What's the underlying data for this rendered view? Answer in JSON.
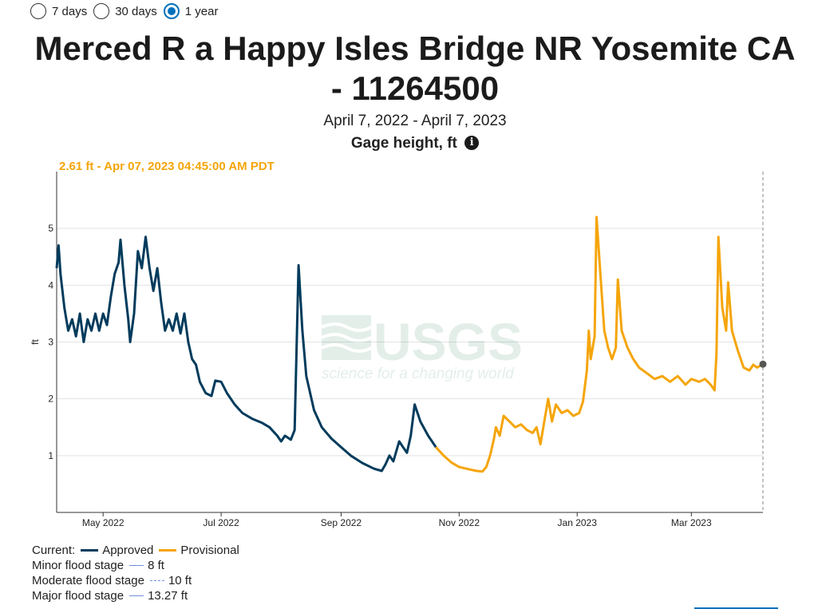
{
  "period_options": [
    {
      "label": "7 days",
      "selected": false
    },
    {
      "label": "30 days",
      "selected": false
    },
    {
      "label": "1 year",
      "selected": true
    }
  ],
  "title_line1": "Merced R a Happy Isles Bridge NR Yosemite CA",
  "title_line2": "- 11264500",
  "date_range": "April 7, 2022 - April 7, 2023",
  "parameter": "Gage height, ft",
  "info_icon": "info-icon",
  "current_value_label": "2.61 ft - Apr 07, 2023 04:45:00 AM PDT",
  "watermark": {
    "logo": "USGS",
    "tagline": "science for a changing world"
  },
  "legend": {
    "current_label": "Current:",
    "approved_label": "Approved",
    "provisional_label": "Provisional",
    "flood_stages": [
      {
        "label": "Minor flood stage",
        "value": "8 ft"
      },
      {
        "label": "Moderate flood stage",
        "value": "10 ft"
      },
      {
        "label": "Major flood stage",
        "value": "13.27 ft"
      }
    ]
  },
  "colors": {
    "approved": "#003b5c",
    "provisional": "#f5a50a",
    "flood": "#6d8fe0",
    "grid": "#e3e3e3",
    "accent": "#0071bc"
  },
  "chart_data": {
    "type": "line",
    "ylabel": "ft",
    "ylim": [
      0,
      6
    ],
    "xlim": [
      "2022-04-07",
      "2023-04-07"
    ],
    "yticks": [
      1,
      2,
      3,
      4,
      5
    ],
    "xticks": [
      {
        "date": "2022-05-01",
        "label": "May 2022"
      },
      {
        "date": "2022-07-01",
        "label": "Jul 2022"
      },
      {
        "date": "2022-09-01",
        "label": "Sep 2022"
      },
      {
        "date": "2022-11-01",
        "label": "Nov 2022"
      },
      {
        "date": "2023-01-01",
        "label": "Jan 2023"
      },
      {
        "date": "2023-03-01",
        "label": "Mar 2023"
      }
    ],
    "grid": true,
    "series": [
      {
        "name": "Approved",
        "points": [
          [
            "2022-04-07",
            4.3
          ],
          [
            "2022-04-08",
            4.7
          ],
          [
            "2022-04-09",
            4.2
          ],
          [
            "2022-04-11",
            3.6
          ],
          [
            "2022-04-13",
            3.2
          ],
          [
            "2022-04-15",
            3.4
          ],
          [
            "2022-04-17",
            3.1
          ],
          [
            "2022-04-19",
            3.5
          ],
          [
            "2022-04-21",
            3.0
          ],
          [
            "2022-04-23",
            3.4
          ],
          [
            "2022-04-25",
            3.2
          ],
          [
            "2022-04-27",
            3.5
          ],
          [
            "2022-04-29",
            3.2
          ],
          [
            "2022-05-01",
            3.5
          ],
          [
            "2022-05-03",
            3.3
          ],
          [
            "2022-05-05",
            3.8
          ],
          [
            "2022-05-07",
            4.2
          ],
          [
            "2022-05-09",
            4.4
          ],
          [
            "2022-05-10",
            4.8
          ],
          [
            "2022-05-12",
            4.0
          ],
          [
            "2022-05-14",
            3.4
          ],
          [
            "2022-05-15",
            3.0
          ],
          [
            "2022-05-17",
            3.5
          ],
          [
            "2022-05-19",
            4.6
          ],
          [
            "2022-05-21",
            4.3
          ],
          [
            "2022-05-23",
            4.85
          ],
          [
            "2022-05-25",
            4.3
          ],
          [
            "2022-05-27",
            3.9
          ],
          [
            "2022-05-29",
            4.3
          ],
          [
            "2022-05-31",
            3.7
          ],
          [
            "2022-06-02",
            3.2
          ],
          [
            "2022-06-04",
            3.4
          ],
          [
            "2022-06-06",
            3.2
          ],
          [
            "2022-06-08",
            3.5
          ],
          [
            "2022-06-10",
            3.15
          ],
          [
            "2022-06-12",
            3.5
          ],
          [
            "2022-06-14",
            3.0
          ],
          [
            "2022-06-16",
            2.7
          ],
          [
            "2022-06-18",
            2.6
          ],
          [
            "2022-06-20",
            2.3
          ],
          [
            "2022-06-23",
            2.1
          ],
          [
            "2022-06-26",
            2.05
          ],
          [
            "2022-06-28",
            2.32
          ],
          [
            "2022-07-01",
            2.3
          ],
          [
            "2022-07-04",
            2.1
          ],
          [
            "2022-07-08",
            1.9
          ],
          [
            "2022-07-12",
            1.75
          ],
          [
            "2022-07-17",
            1.65
          ],
          [
            "2022-07-22",
            1.58
          ],
          [
            "2022-07-26",
            1.5
          ],
          [
            "2022-07-30",
            1.35
          ],
          [
            "2022-08-01",
            1.25
          ],
          [
            "2022-08-03",
            1.35
          ],
          [
            "2022-08-06",
            1.28
          ],
          [
            "2022-08-08",
            1.45
          ],
          [
            "2022-08-10",
            4.35
          ],
          [
            "2022-08-12",
            3.2
          ],
          [
            "2022-08-14",
            2.4
          ],
          [
            "2022-08-18",
            1.8
          ],
          [
            "2022-08-22",
            1.5
          ],
          [
            "2022-08-27",
            1.3
          ],
          [
            "2022-09-01",
            1.15
          ],
          [
            "2022-09-06",
            1.0
          ],
          [
            "2022-09-12",
            0.87
          ],
          [
            "2022-09-18",
            0.77
          ],
          [
            "2022-09-22",
            0.73
          ],
          [
            "2022-09-24",
            0.85
          ],
          [
            "2022-09-26",
            1.0
          ],
          [
            "2022-09-28",
            0.9
          ],
          [
            "2022-10-01",
            1.25
          ],
          [
            "2022-10-03",
            1.15
          ],
          [
            "2022-10-05",
            1.05
          ],
          [
            "2022-10-07",
            1.35
          ],
          [
            "2022-10-09",
            1.9
          ],
          [
            "2022-10-12",
            1.6
          ],
          [
            "2022-10-16",
            1.35
          ],
          [
            "2022-10-20",
            1.15
          ]
        ]
      },
      {
        "name": "Provisional",
        "points": [
          [
            "2022-10-20",
            1.15
          ],
          [
            "2022-10-24",
            1.0
          ],
          [
            "2022-10-28",
            0.88
          ],
          [
            "2022-11-01",
            0.8
          ],
          [
            "2022-11-06",
            0.76
          ],
          [
            "2022-11-10",
            0.73
          ],
          [
            "2022-11-13",
            0.72
          ],
          [
            "2022-11-15",
            0.8
          ],
          [
            "2022-11-17",
            1.0
          ],
          [
            "2022-11-19",
            1.3
          ],
          [
            "2022-11-20",
            1.5
          ],
          [
            "2022-11-22",
            1.35
          ],
          [
            "2022-11-24",
            1.7
          ],
          [
            "2022-11-27",
            1.6
          ],
          [
            "2022-11-30",
            1.5
          ],
          [
            "2022-12-03",
            1.55
          ],
          [
            "2022-12-06",
            1.45
          ],
          [
            "2022-12-09",
            1.4
          ],
          [
            "2022-12-11",
            1.5
          ],
          [
            "2022-12-13",
            1.2
          ],
          [
            "2022-12-15",
            1.6
          ],
          [
            "2022-12-17",
            2.0
          ],
          [
            "2022-12-19",
            1.6
          ],
          [
            "2022-12-21",
            1.9
          ],
          [
            "2022-12-24",
            1.75
          ],
          [
            "2022-12-27",
            1.8
          ],
          [
            "2022-12-30",
            1.7
          ],
          [
            "2023-01-02",
            1.75
          ],
          [
            "2023-01-04",
            1.95
          ],
          [
            "2023-01-06",
            2.5
          ],
          [
            "2023-01-07",
            3.2
          ],
          [
            "2023-01-08",
            2.7
          ],
          [
            "2023-01-10",
            3.1
          ],
          [
            "2023-01-11",
            5.2
          ],
          [
            "2023-01-13",
            4.2
          ],
          [
            "2023-01-15",
            3.2
          ],
          [
            "2023-01-17",
            2.9
          ],
          [
            "2023-01-19",
            2.7
          ],
          [
            "2023-01-21",
            2.9
          ],
          [
            "2023-01-22",
            4.1
          ],
          [
            "2023-01-24",
            3.2
          ],
          [
            "2023-01-27",
            2.9
          ],
          [
            "2023-01-30",
            2.7
          ],
          [
            "2023-02-02",
            2.55
          ],
          [
            "2023-02-06",
            2.45
          ],
          [
            "2023-02-10",
            2.35
          ],
          [
            "2023-02-14",
            2.4
          ],
          [
            "2023-02-18",
            2.3
          ],
          [
            "2023-02-22",
            2.4
          ],
          [
            "2023-02-26",
            2.25
          ],
          [
            "2023-03-01",
            2.35
          ],
          [
            "2023-03-05",
            2.3
          ],
          [
            "2023-03-08",
            2.35
          ],
          [
            "2023-03-11",
            2.25
          ],
          [
            "2023-03-13",
            2.15
          ],
          [
            "2023-03-14",
            2.8
          ],
          [
            "2023-03-15",
            4.85
          ],
          [
            "2023-03-17",
            3.6
          ],
          [
            "2023-03-19",
            3.2
          ],
          [
            "2023-03-20",
            4.05
          ],
          [
            "2023-03-22",
            3.2
          ],
          [
            "2023-03-25",
            2.85
          ],
          [
            "2023-03-28",
            2.55
          ],
          [
            "2023-03-31",
            2.5
          ],
          [
            "2023-04-02",
            2.6
          ],
          [
            "2023-04-04",
            2.55
          ],
          [
            "2023-04-07",
            2.61
          ]
        ]
      }
    ],
    "current_point": {
      "date": "2023-04-07",
      "value": 2.61
    }
  }
}
